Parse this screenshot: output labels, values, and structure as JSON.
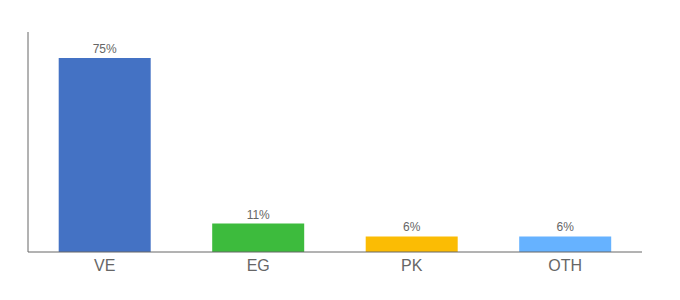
{
  "chart_data": {
    "type": "bar",
    "categories": [
      "VE",
      "EG",
      "PK",
      "OTH"
    ],
    "values": [
      75,
      11,
      6,
      6
    ],
    "value_labels": [
      "75%",
      "11%",
      "6%",
      "6%"
    ],
    "colors": [
      "#4472C4",
      "#3DBB3D",
      "#FBBC04",
      "#66B2FF"
    ],
    "ylim": [
      0,
      85
    ],
    "data_labels": true,
    "tick_labels": "x",
    "grid": false
  }
}
